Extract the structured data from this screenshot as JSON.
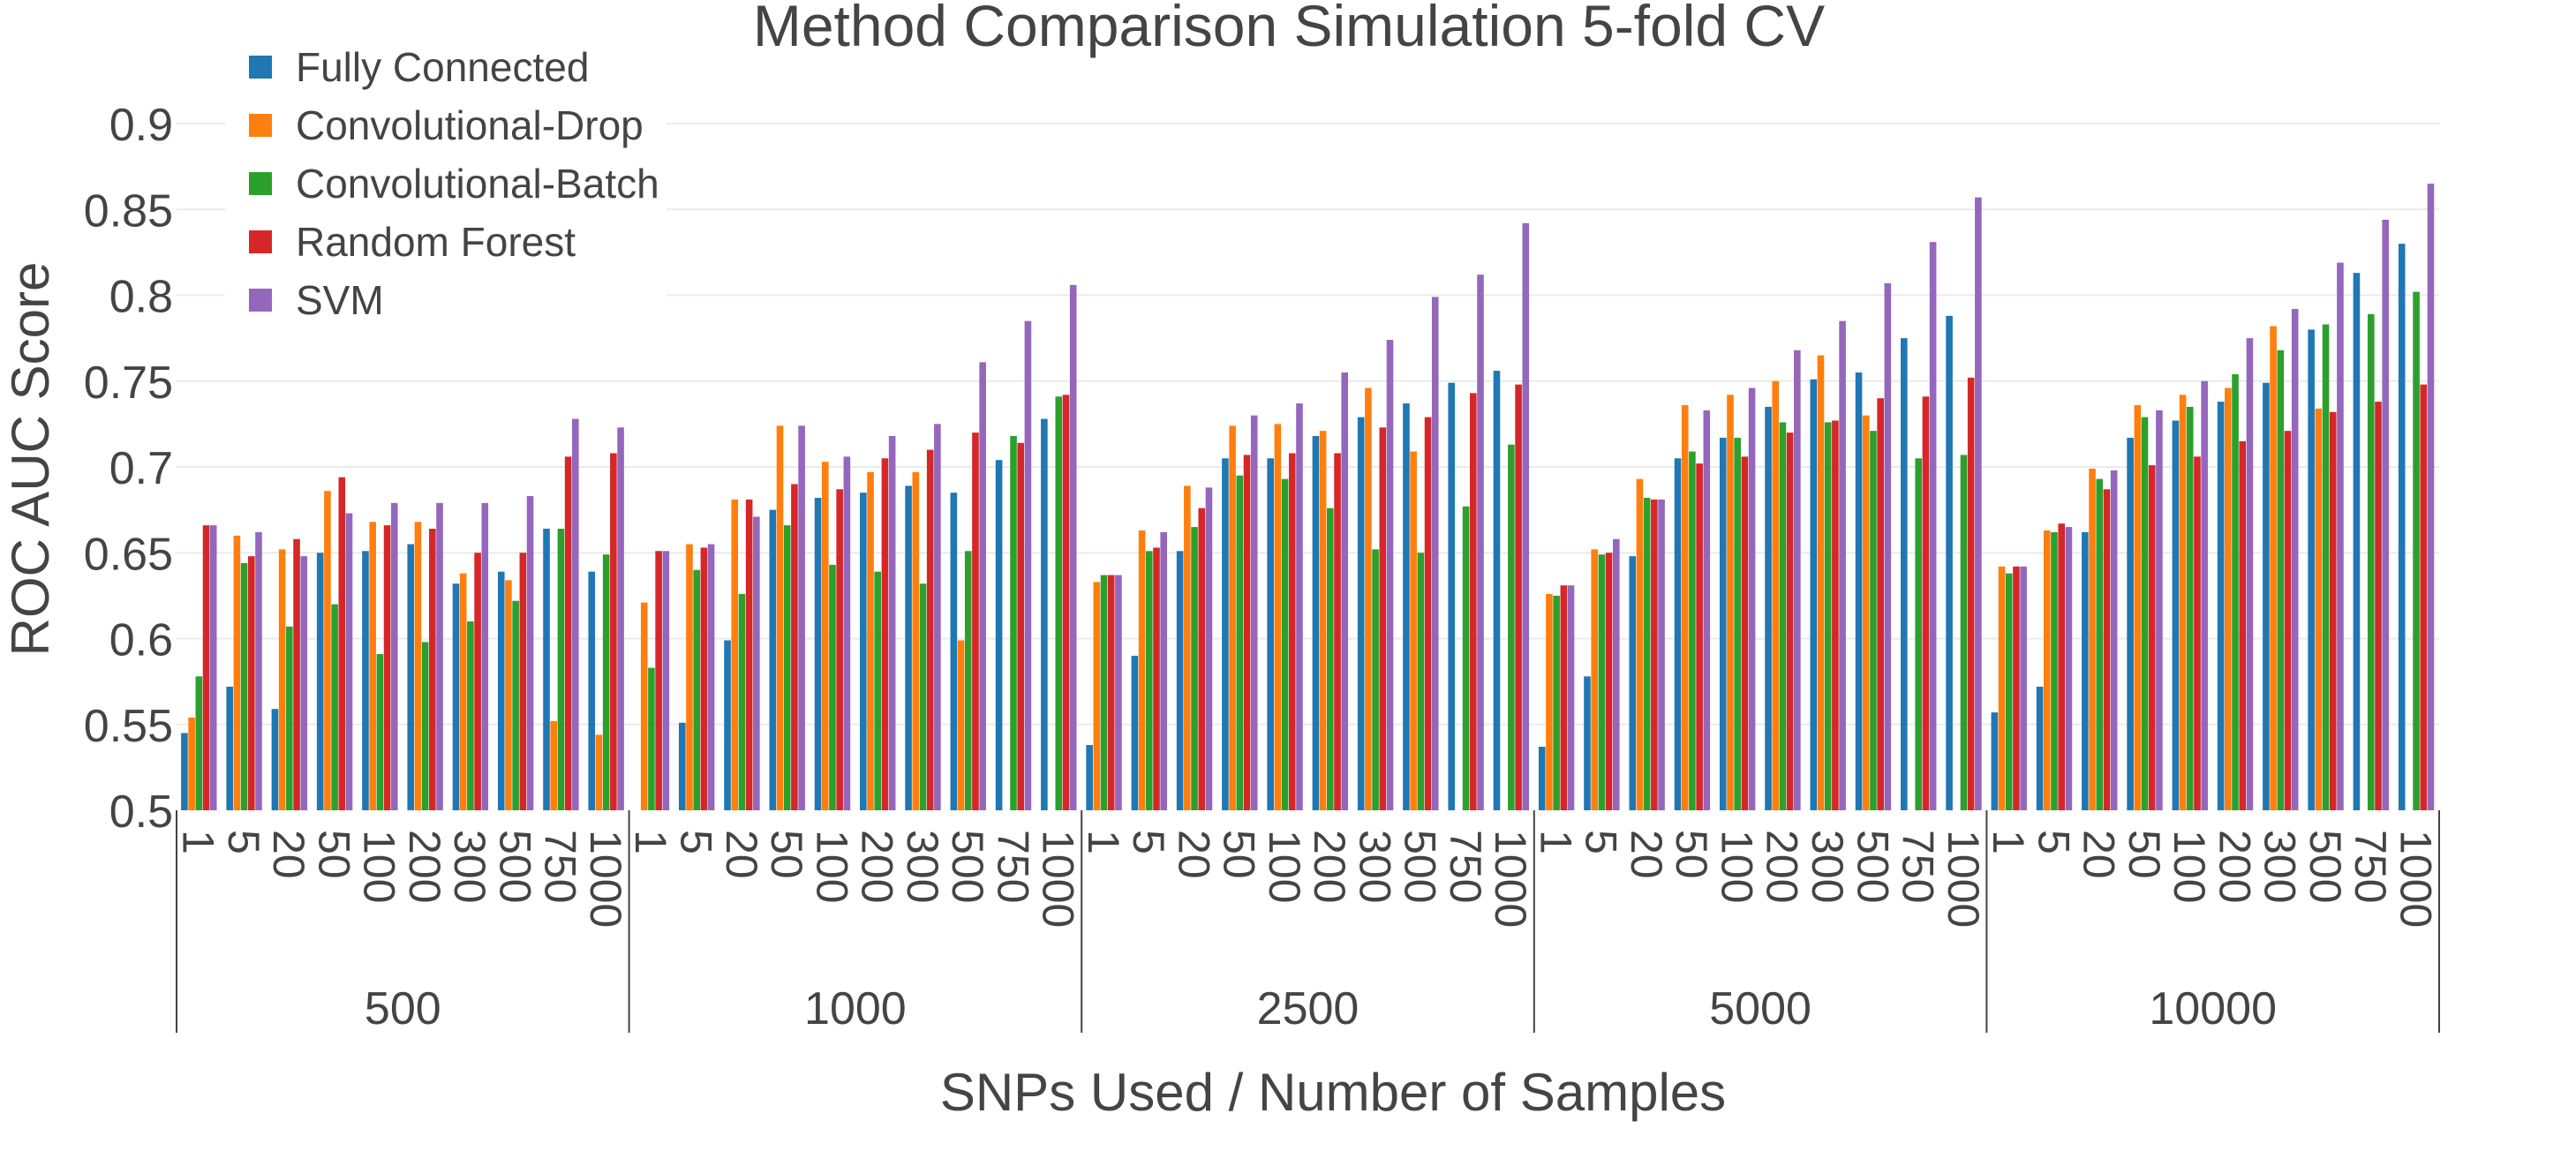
{
  "chart_data": {
    "type": "bar",
    "title": "Method Comparison Simulation 5-fold CV",
    "xlabel": "SNPs Used / Number of Samples",
    "ylabel": "ROC AUC Score",
    "ylim": [
      0.5,
      0.92
    ],
    "y_ticks": [
      0.5,
      0.55,
      0.6,
      0.65,
      0.7,
      0.75,
      0.8,
      0.85,
      0.9
    ],
    "grid": true,
    "legend_position": "top-left",
    "groups": [
      "500",
      "1000",
      "2500",
      "5000",
      "10000"
    ],
    "categories": [
      "1",
      "5",
      "20",
      "50",
      "100",
      "200",
      "300",
      "500",
      "750",
      "1000"
    ],
    "series": [
      {
        "name": "Fully Connected",
        "color": "#1f77b4",
        "values": [
          [
            0.545,
            0.572,
            0.559,
            0.65,
            0.651,
            0.655,
            0.632,
            0.639,
            0.664,
            0.639
          ],
          [
            0.5,
            0.551,
            0.599,
            0.675,
            0.682,
            0.685,
            0.689,
            0.685,
            0.704,
            0.728
          ],
          [
            0.538,
            0.59,
            0.651,
            0.705,
            0.705,
            0.718,
            0.729,
            0.737,
            0.749,
            0.756
          ],
          [
            0.537,
            0.578,
            0.648,
            0.705,
            0.717,
            0.735,
            0.751,
            0.755,
            0.775,
            0.788
          ],
          [
            0.557,
            0.572,
            0.662,
            0.717,
            0.727,
            0.738,
            0.749,
            0.78,
            0.813,
            0.83
          ]
        ]
      },
      {
        "name": "Convolutional-Drop",
        "color": "#ff7f0e",
        "values": [
          [
            0.554,
            0.66,
            0.652,
            0.686,
            0.668,
            0.668,
            0.638,
            0.634,
            0.552,
            0.544
          ],
          [
            0.621,
            0.655,
            0.681,
            0.724,
            0.703,
            0.697,
            0.697,
            0.599,
            null,
            null
          ],
          [
            0.633,
            0.663,
            0.689,
            0.724,
            0.725,
            0.721,
            0.746,
            0.709,
            null,
            null
          ],
          [
            0.626,
            0.652,
            0.693,
            0.736,
            0.742,
            0.75,
            0.765,
            0.73,
            null,
            null
          ],
          [
            0.642,
            0.663,
            0.699,
            0.736,
            0.742,
            0.746,
            0.782,
            0.734,
            null,
            null
          ]
        ]
      },
      {
        "name": "Convolutional-Batch",
        "color": "#2ca02c",
        "values": [
          [
            0.578,
            0.644,
            0.607,
            0.62,
            0.591,
            0.598,
            0.61,
            0.622,
            0.664,
            0.649
          ],
          [
            0.583,
            0.64,
            0.626,
            0.666,
            0.643,
            0.639,
            0.632,
            0.651,
            0.718,
            0.741
          ],
          [
            0.637,
            0.651,
            0.665,
            0.695,
            0.693,
            0.676,
            0.652,
            0.65,
            0.677,
            0.713
          ],
          [
            0.625,
            0.649,
            0.682,
            0.709,
            0.717,
            0.726,
            0.726,
            0.721,
            0.705,
            0.707
          ],
          [
            0.638,
            0.662,
            0.693,
            0.729,
            0.735,
            0.754,
            0.768,
            0.783,
            0.789,
            0.802
          ]
        ]
      },
      {
        "name": "Random Forest",
        "color": "#d62728",
        "values": [
          [
            0.666,
            0.648,
            0.658,
            0.694,
            0.666,
            0.664,
            0.65,
            0.65,
            0.706,
            0.708
          ],
          [
            0.651,
            0.653,
            0.681,
            0.69,
            0.687,
            0.705,
            0.71,
            0.72,
            0.714,
            0.742
          ],
          [
            0.637,
            0.653,
            0.676,
            0.707,
            0.708,
            0.708,
            0.723,
            0.729,
            0.743,
            0.748
          ],
          [
            0.631,
            0.65,
            0.681,
            0.702,
            0.706,
            0.72,
            0.727,
            0.74,
            0.741,
            0.752
          ],
          [
            0.642,
            0.667,
            0.687,
            0.701,
            0.706,
            0.715,
            0.721,
            0.732,
            0.738,
            0.748
          ]
        ]
      },
      {
        "name": "SVM",
        "color": "#9467bd",
        "values": [
          [
            0.666,
            0.662,
            0.648,
            0.673,
            0.679,
            0.679,
            0.679,
            0.683,
            0.728,
            0.723
          ],
          [
            0.651,
            0.655,
            0.671,
            0.724,
            0.706,
            0.718,
            0.725,
            0.761,
            0.785,
            0.806
          ],
          [
            0.637,
            0.662,
            0.688,
            0.73,
            0.737,
            0.755,
            0.774,
            0.799,
            0.812,
            0.842
          ],
          [
            0.631,
            0.658,
            0.681,
            0.733,
            0.746,
            0.768,
            0.785,
            0.807,
            0.831,
            0.857
          ],
          [
            0.642,
            0.665,
            0.698,
            0.733,
            0.75,
            0.775,
            0.792,
            0.819,
            0.844,
            0.865
          ]
        ]
      }
    ]
  }
}
